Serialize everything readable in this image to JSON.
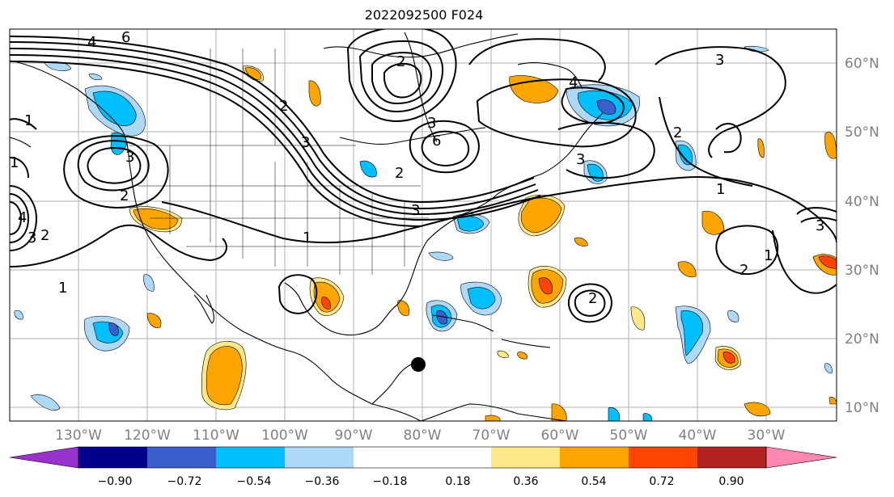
{
  "title": "2022092500 F024",
  "lon_labels": [
    "130°W",
    "120°W",
    "110°W",
    "100°W",
    "90°W",
    "80°W",
    "70°W",
    "60°W",
    "50°W",
    "40°W",
    "30°W"
  ],
  "lat_labels": [
    "60°N",
    "50°N",
    "40°N",
    "30°N",
    "20°N",
    "10°N"
  ],
  "colorbar": {
    "ticks": [
      "−0.90",
      "−0.72",
      "−0.54",
      "−0.36",
      "−0.18",
      "0.18",
      "0.36",
      "0.54",
      "0.72",
      "0.90"
    ],
    "colors": [
      "#9932cc",
      "#00008b",
      "#3a5fcd",
      "#00bfff",
      "#add8f6",
      "#ffffff",
      "#ffe88a",
      "#ffa500",
      "#ff4500",
      "#b22222",
      "#ff88b0"
    ]
  },
  "fill_colors": {
    "neg_light": "#add8f6",
    "neg": "#00bfff",
    "neg_strong": "#3a5fcd",
    "neg_extreme": "#9932cc",
    "pos_light": "#ffe88a",
    "pos": "#ffa500",
    "pos_strong": "#ff4500",
    "pos_extreme": "#b22222"
  },
  "contour_labels": [
    "6",
    "4",
    "2",
    "2",
    "3",
    "4",
    "3",
    "3",
    "2",
    "1",
    "1",
    "1",
    "3",
    "6",
    "2",
    "3",
    "2",
    "3",
    "1",
    "1",
    "3",
    "4",
    "2",
    "2",
    "3",
    "1",
    "2"
  ],
  "marker": {
    "name": "storm-center-dot"
  }
}
